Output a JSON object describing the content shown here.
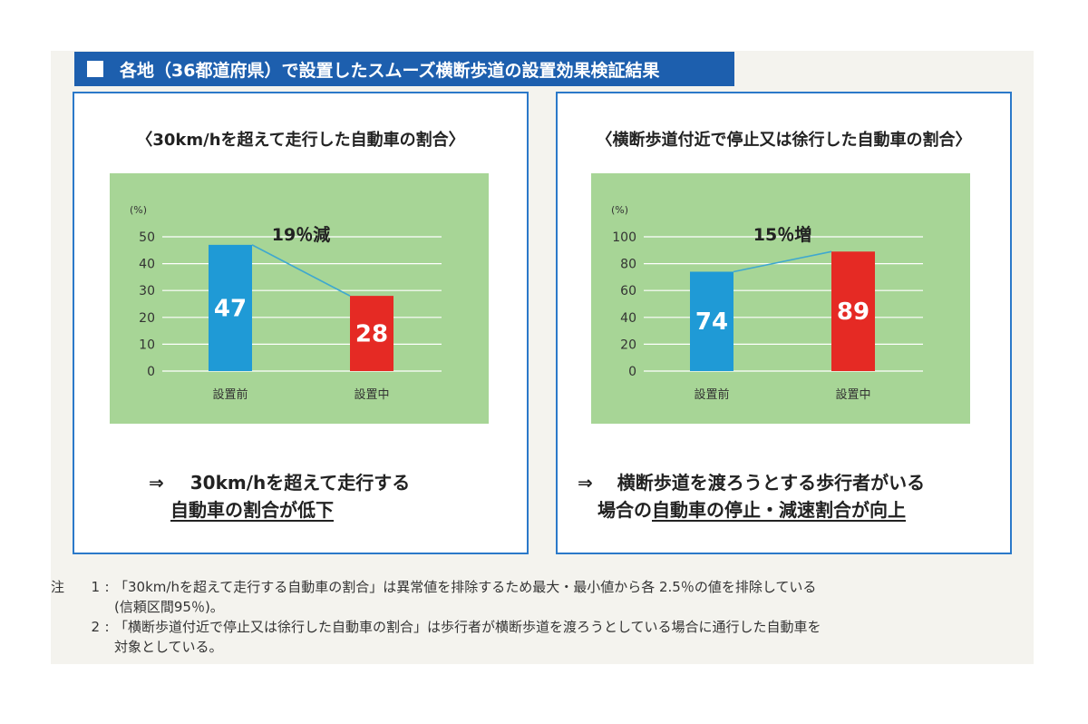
{
  "header": {
    "title": "各地（36都道府県）で設置したスムーズ横断歩道の設置効果検証結果"
  },
  "colors": {
    "header_bg": "#1d5fae",
    "panel_border": "#2b79c9",
    "plot_bg": "#a7d596",
    "bar_before": "#1f9ad6",
    "bar_after": "#e52a24",
    "trend_line": "#3fa8cf",
    "grid": "#ffffff"
  },
  "panels": [
    {
      "title": "〈30km/hを超えて走行した自動車の割合〉",
      "conclusion_arrow": "⇒",
      "conclusion_line1": "30km/hを超えて走行する",
      "conclusion_line2": "自動車の割合が低下"
    },
    {
      "title": "〈横断歩道付近で停止又は徐行した自動車の割合〉",
      "conclusion_arrow": "⇒",
      "conclusion_line1": "横断歩道を渡ろうとする歩行者がいる",
      "conclusion_line2_plain": "場合の",
      "conclusion_line2_underlined": "自動車の停止・減速割合が向上"
    }
  ],
  "chart_data": [
    {
      "type": "bar",
      "title": "〈30km/hを超えて走行した自動車の割合〉",
      "categories": [
        "設置前",
        "設置中"
      ],
      "values": [
        47,
        28
      ],
      "ylabel": "(%)",
      "ylim": [
        0,
        50
      ],
      "yticks": [
        0,
        10,
        20,
        30,
        40,
        50
      ],
      "annotation": "19％減",
      "grid": true
    },
    {
      "type": "bar",
      "title": "〈横断歩道付近で停止又は徐行した自動車の割合〉",
      "categories": [
        "設置前",
        "設置中"
      ],
      "values": [
        74,
        89
      ],
      "ylabel": "(%)",
      "ylim": [
        0,
        100
      ],
      "yticks": [
        0,
        20,
        40,
        60,
        80,
        100
      ],
      "annotation": "15％増",
      "grid": true
    }
  ],
  "notes": [
    {
      "label": "注",
      "num": "1",
      "line1": "「30km/hを超えて走行する自動車の割合」は異常値を排除するため最大・最小値から各 2.5％の値を排除している",
      "line2": "(信頼区間95％)。"
    },
    {
      "label": "",
      "num": "2",
      "line1": "「横断歩道付近で停止又は徐行した自動車の割合」は歩行者が横断歩道を渡ろうとしている場合に通行した自動車を",
      "line2": "対象としている。"
    }
  ]
}
